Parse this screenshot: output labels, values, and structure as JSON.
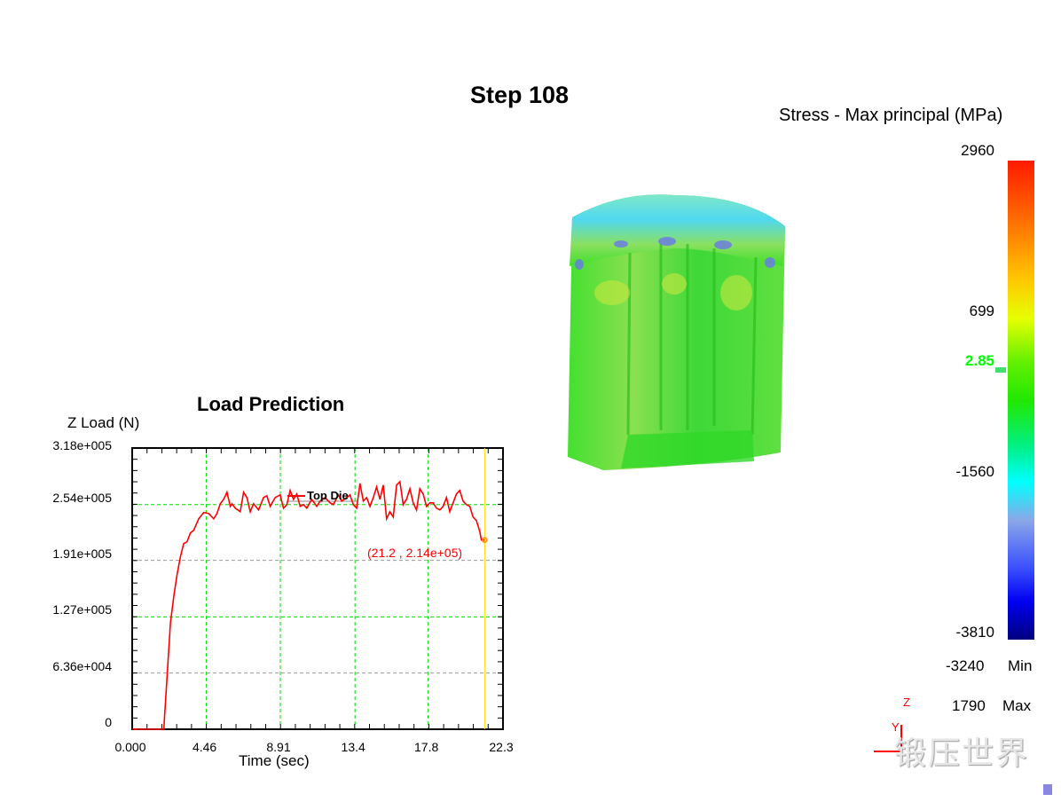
{
  "header": {
    "step_label": "Step  108"
  },
  "legend": {
    "title": "Stress - Max principal (MPa)",
    "labels": [
      "2960",
      "699",
      "2.85",
      "-1560",
      "-3810"
    ],
    "current_value_color": "#00ff00",
    "min_value": "-3240",
    "min_label": "Min",
    "max_value": "1790",
    "max_label": "Max"
  },
  "axes_triad": {
    "z": "Z",
    "y": "Y"
  },
  "watermark": "锻压世界",
  "chart_data": {
    "type": "line",
    "title": "Load Prediction",
    "xlabel": "Time (sec)",
    "ylabel": "Z Load (N)",
    "xlim": [
      0,
      22.3
    ],
    "ylim": [
      0,
      318000
    ],
    "x_ticks": [
      "0.000",
      "4.46",
      "8.91",
      "13.4",
      "17.8",
      "22.3"
    ],
    "y_ticks": [
      "0",
      "6.36e+004",
      "1.27e+005",
      "1.91e+005",
      "2.54e+005",
      "3.18e+005"
    ],
    "grid": true,
    "legend": "Top Die",
    "legend_placement": "top-center",
    "annotation": "(21.2 , 2.14e+05)",
    "cursor_x": 21.2,
    "series": [
      {
        "name": "Top Die",
        "color": "#ff0000",
        "x": [
          0,
          1.9,
          2.1,
          2.3,
          2.5,
          2.7,
          2.9,
          3.1,
          3.3,
          3.5,
          3.7,
          4.0,
          4.3,
          4.6,
          4.9,
          5.1,
          5.3,
          5.5,
          5.7,
          5.9,
          6.0,
          6.2,
          6.5,
          6.7,
          6.9,
          7.1,
          7.3,
          7.6,
          7.9,
          8.1,
          8.3,
          8.6,
          8.9,
          9.1,
          9.3,
          9.5,
          9.7,
          9.9,
          10.1,
          10.3,
          10.5,
          10.8,
          11.1,
          11.3,
          11.6,
          11.9,
          12.1,
          12.4,
          12.6,
          12.9,
          13.1,
          13.3,
          13.5,
          13.7,
          13.9,
          14.1,
          14.3,
          14.5,
          14.7,
          14.9,
          15.1,
          15.3,
          15.5,
          15.7,
          15.9,
          16.1,
          16.3,
          16.5,
          16.7,
          16.9,
          17.1,
          17.3,
          17.5,
          17.7,
          17.9,
          18.1,
          18.3,
          18.5,
          18.7,
          18.9,
          19.1,
          19.3,
          19.5,
          19.7,
          19.9,
          20.1,
          20.3,
          20.5,
          20.7,
          20.9,
          21.0,
          21.2
        ],
        "y": [
          0,
          0,
          60000,
          120000,
          150000,
          175000,
          195000,
          210000,
          212000,
          222000,
          225000,
          238000,
          245000,
          244000,
          238000,
          244000,
          255000,
          260000,
          268000,
          252000,
          255000,
          250000,
          246000,
          268000,
          262000,
          246000,
          255000,
          248000,
          262000,
          264000,
          252000,
          262000,
          265000,
          250000,
          254000,
          270000,
          260000,
          266000,
          252000,
          254000,
          250000,
          260000,
          252000,
          258000,
          262000,
          256000,
          254000,
          265000,
          258000,
          262000,
          265000,
          254000,
          250000,
          278000,
          258000,
          262000,
          252000,
          262000,
          274000,
          260000,
          276000,
          238000,
          246000,
          240000,
          276000,
          280000,
          254000,
          260000,
          272000,
          256000,
          248000,
          272000,
          266000,
          252000,
          256000,
          256000,
          250000,
          248000,
          252000,
          262000,
          246000,
          256000,
          266000,
          270000,
          258000,
          254000,
          252000,
          240000,
          236000,
          224000,
          214000,
          214000
        ]
      }
    ]
  }
}
